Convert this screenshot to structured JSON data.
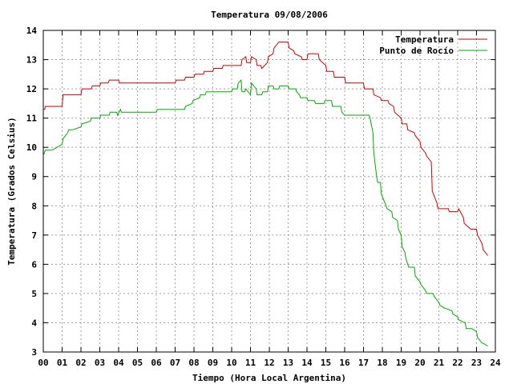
{
  "chart_data": {
    "type": "line",
    "title": "Temperatura 09/08/2006",
    "xlabel": "Tiempo (Hora Local Argentina)",
    "ylabel": "Temperatura (Grados Celsius)",
    "xlim": [
      0,
      24
    ],
    "ylim": [
      3,
      14
    ],
    "grid": true,
    "legend_position": "top-right",
    "x_tick_labels": [
      "00",
      "01",
      "02",
      "03",
      "04",
      "05",
      "06",
      "07",
      "08",
      "09",
      "10",
      "11",
      "12",
      "13",
      "14",
      "15",
      "16",
      "17",
      "18",
      "19",
      "20",
      "21",
      "22",
      "23",
      "24"
    ],
    "y_ticks": [
      3,
      4,
      5,
      6,
      7,
      8,
      9,
      10,
      11,
      12,
      13,
      14
    ],
    "series": [
      {
        "name": "Temperatura",
        "color": "#cc0000",
        "x": [
          0.0,
          0.08,
          0.1,
          0.45,
          0.5,
          1.0,
          1.05,
          1.4,
          1.45,
          2.0,
          2.05,
          2.55,
          2.6,
          3.0,
          3.05,
          3.45,
          3.5,
          4.0,
          4.05,
          6.0,
          6.05,
          7.0,
          7.05,
          7.5,
          7.55,
          8.0,
          8.05,
          8.5,
          8.55,
          9.0,
          9.05,
          9.5,
          9.55,
          10.0,
          10.05,
          10.5,
          10.55,
          10.75,
          10.8,
          11.0,
          11.05,
          11.3,
          11.35,
          11.55,
          11.6,
          11.9,
          11.95,
          12.2,
          12.25,
          12.5,
          12.55,
          13.0,
          13.05,
          13.3,
          13.35,
          13.7,
          13.75,
          14.0,
          14.05,
          14.2,
          14.25,
          14.6,
          14.65,
          15.0,
          15.05,
          15.4,
          15.45,
          16.0,
          16.05,
          16.4,
          16.45,
          17.0,
          17.05,
          17.5,
          17.55,
          17.9,
          17.95,
          18.3,
          18.35,
          18.6,
          18.65,
          19.0,
          19.05,
          19.3,
          19.35,
          19.7,
          19.75,
          20.0,
          20.05,
          20.3,
          20.35,
          20.6,
          20.65,
          20.9,
          20.95,
          21.2,
          21.25,
          21.5,
          21.55,
          22.0,
          22.05,
          22.3,
          22.35,
          22.7,
          22.75,
          23.0,
          23.05,
          23.3,
          23.35,
          23.6
        ],
        "values": [
          11.3,
          11.3,
          11.4,
          11.4,
          11.4,
          11.4,
          11.8,
          11.8,
          11.8,
          11.8,
          12.0,
          12.0,
          12.1,
          12.1,
          12.2,
          12.2,
          12.3,
          12.3,
          12.2,
          12.2,
          12.2,
          12.2,
          12.3,
          12.3,
          12.4,
          12.4,
          12.5,
          12.5,
          12.6,
          12.6,
          12.7,
          12.7,
          12.8,
          12.8,
          12.8,
          12.8,
          13.0,
          13.1,
          12.9,
          12.9,
          13.1,
          13.0,
          12.8,
          12.8,
          12.7,
          12.9,
          13.1,
          13.2,
          13.4,
          13.6,
          13.6,
          13.6,
          13.4,
          13.3,
          13.2,
          13.1,
          13.0,
          13.0,
          13.2,
          13.2,
          13.2,
          13.2,
          13.0,
          12.8,
          12.6,
          12.6,
          12.4,
          12.4,
          12.2,
          12.2,
          12.2,
          12.2,
          12.0,
          12.0,
          11.8,
          11.7,
          11.6,
          11.6,
          11.5,
          11.4,
          11.2,
          11.0,
          10.8,
          10.8,
          10.6,
          10.5,
          10.4,
          10.2,
          10.0,
          9.8,
          9.7,
          9.5,
          8.5,
          8.1,
          7.9,
          7.9,
          7.9,
          7.9,
          7.8,
          7.8,
          7.9,
          7.6,
          7.4,
          7.2,
          7.2,
          7.2,
          7.0,
          6.7,
          6.5,
          6.3
        ]
      },
      {
        "name": "Punto de Rocío",
        "color": "#00aa00",
        "x": [
          0.0,
          0.05,
          0.1,
          0.4,
          0.45,
          1.0,
          1.05,
          1.3,
          1.35,
          1.5,
          1.55,
          2.0,
          2.05,
          2.5,
          2.55,
          3.0,
          3.05,
          3.5,
          3.55,
          3.9,
          3.95,
          4.1,
          4.15,
          4.35,
          4.4,
          6.0,
          6.05,
          7.0,
          7.05,
          7.5,
          7.55,
          7.9,
          7.95,
          8.3,
          8.35,
          8.6,
          8.65,
          9.0,
          9.05,
          10.0,
          10.05,
          10.3,
          10.35,
          10.5,
          10.55,
          10.7,
          10.75,
          11.0,
          11.05,
          11.3,
          11.35,
          11.6,
          11.65,
          11.9,
          11.95,
          12.2,
          12.25,
          12.5,
          12.55,
          13.0,
          13.05,
          13.4,
          13.45,
          13.6,
          13.65,
          14.0,
          14.05,
          14.4,
          14.45,
          14.9,
          14.95,
          15.3,
          15.35,
          15.8,
          15.85,
          16.0,
          16.05,
          17.3,
          17.35,
          17.5,
          17.55,
          17.7,
          17.75,
          17.9,
          17.95,
          18.2,
          18.25,
          18.5,
          18.55,
          18.8,
          18.85,
          19.0,
          19.05,
          19.2,
          19.25,
          19.4,
          19.45,
          19.7,
          19.75,
          20.0,
          20.05,
          20.3,
          20.35,
          20.7,
          20.75,
          21.0,
          21.05,
          21.3,
          21.35,
          21.7,
          21.75,
          22.0,
          22.05,
          22.4,
          22.45,
          22.7,
          22.75,
          23.0,
          23.05,
          23.3,
          23.35,
          23.6
        ],
        "values": [
          9.7,
          9.8,
          9.9,
          9.9,
          9.9,
          10.1,
          10.3,
          10.5,
          10.6,
          10.6,
          10.6,
          10.7,
          10.8,
          10.9,
          11.0,
          11.0,
          11.1,
          11.1,
          11.2,
          11.2,
          11.1,
          11.3,
          11.2,
          11.2,
          11.2,
          11.2,
          11.3,
          11.3,
          11.3,
          11.3,
          11.4,
          11.5,
          11.6,
          11.7,
          11.8,
          11.8,
          11.9,
          11.9,
          11.9,
          11.9,
          12.0,
          12.0,
          12.2,
          12.3,
          11.9,
          11.9,
          12.0,
          11.8,
          12.2,
          12.0,
          11.8,
          11.8,
          11.9,
          11.9,
          12.1,
          12.1,
          12.0,
          12.0,
          12.1,
          12.1,
          12.0,
          12.0,
          11.9,
          11.8,
          11.7,
          11.7,
          11.6,
          11.6,
          11.5,
          11.5,
          11.6,
          11.6,
          11.4,
          11.4,
          11.2,
          11.1,
          11.1,
          11.1,
          11.0,
          10.5,
          9.8,
          9.0,
          8.8,
          8.8,
          8.4,
          8.0,
          7.9,
          7.8,
          7.6,
          7.5,
          7.2,
          7.0,
          6.6,
          6.4,
          6.2,
          5.9,
          5.9,
          5.9,
          5.6,
          5.4,
          5.3,
          5.1,
          5.0,
          5.0,
          4.9,
          4.7,
          4.6,
          4.5,
          4.5,
          4.4,
          4.3,
          4.2,
          4.1,
          4.0,
          3.8,
          3.8,
          3.8,
          3.7,
          3.5,
          3.3,
          3.3,
          3.2
        ]
      }
    ]
  }
}
